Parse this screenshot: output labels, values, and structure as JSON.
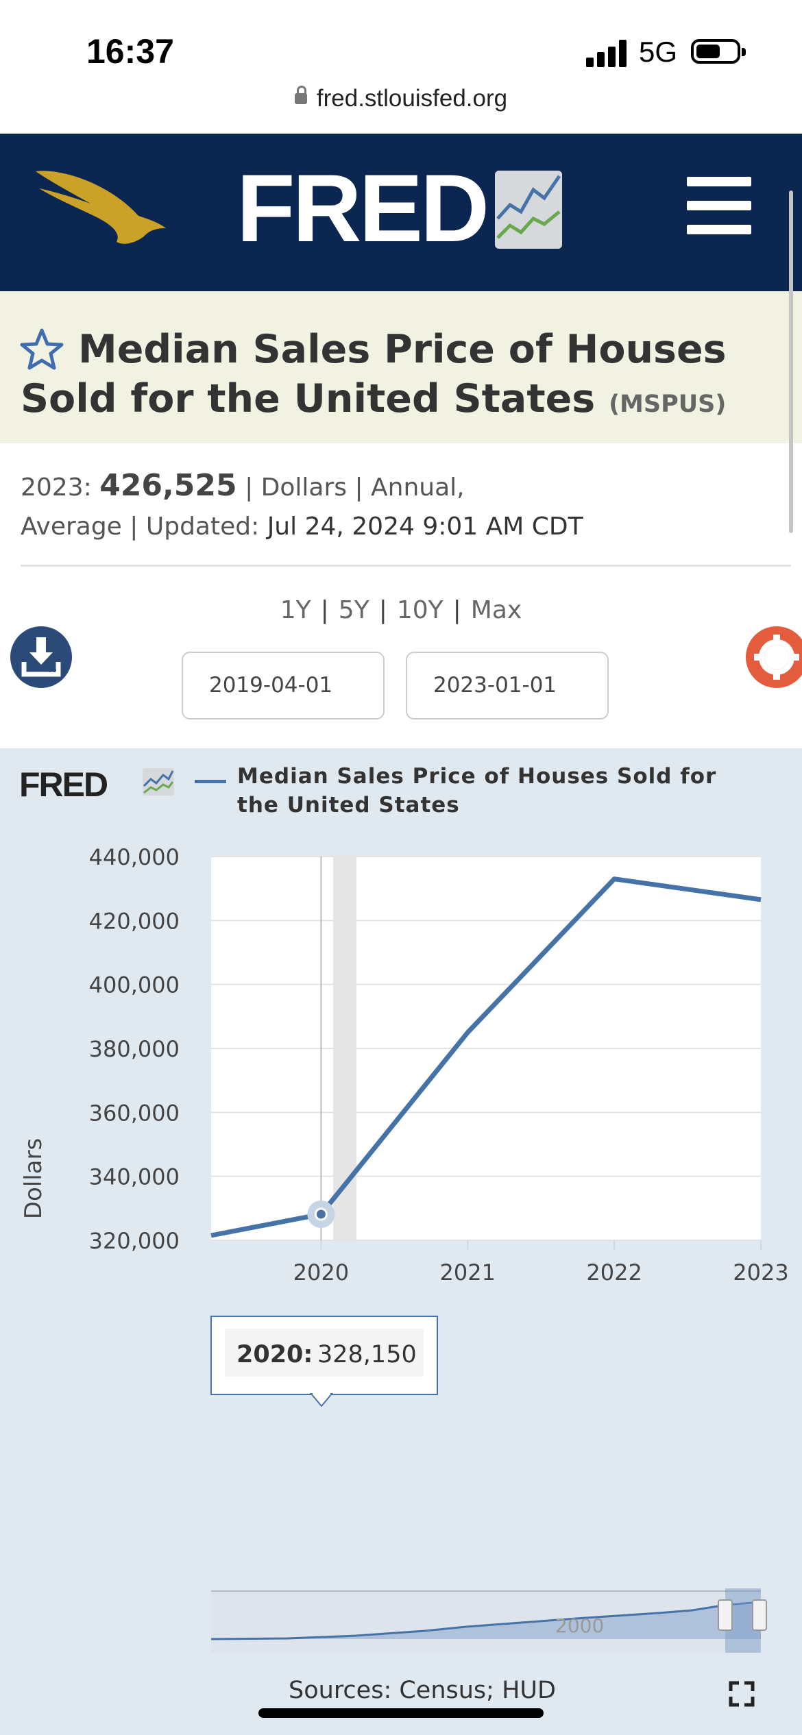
{
  "status_bar": {
    "time": "16:37",
    "network": "5G"
  },
  "browser": {
    "url": "fred.stlouisfed.org"
  },
  "header": {
    "logo_text": "FRED"
  },
  "series": {
    "title": "Median Sales Price of Houses Sold for the United States",
    "code": "(MSPUS)"
  },
  "meta": {
    "year_label": "2023:",
    "value": "426,525",
    "units": "| Dollars | Annual,",
    "frequency": "Average",
    "updated_label": "| Updated:",
    "updated_value": "Jul 24, 2024 9:01 AM CDT"
  },
  "ranges": [
    "1Y",
    "5Y",
    "10Y",
    "Max"
  ],
  "dates": {
    "start": "2019-04-01",
    "end": "2023-01-01"
  },
  "chart_panel": {
    "logo_text": "FRED",
    "legend": "Median Sales Price of Houses Sold for the United States",
    "ylabel": "Dollars",
    "sources": "Sources: Census; HUD",
    "tooltip": {
      "label": "2020:",
      "value": "328,150"
    },
    "navigator_label": "2000"
  },
  "colors": {
    "header": "#0b2650",
    "series": "#4572a7",
    "accent": "#e25c3d",
    "title_bg": "#f1f2e2",
    "chart_bg": "#e1e9f0"
  },
  "chart_data": {
    "type": "line",
    "title": "",
    "xlabel": "",
    "ylabel": "Dollars",
    "x": [
      2019.25,
      2020,
      2021,
      2022,
      2023
    ],
    "series": [
      {
        "name": "Median Sales Price of Houses Sold for the United States",
        "values": [
          321500,
          328150,
          385000,
          433000,
          426525
        ]
      }
    ],
    "xticks": [
      2020,
      2021,
      2022,
      2023
    ],
    "xtick_labels": [
      "2020",
      "2021",
      "2022",
      "2023"
    ],
    "yticks": [
      320000,
      340000,
      360000,
      380000,
      400000,
      420000,
      440000
    ],
    "ytick_labels": [
      "320,000",
      "340,000",
      "360,000",
      "380,000",
      "400,000",
      "420,000",
      "440,000"
    ],
    "xlim": [
      2019.25,
      2023
    ],
    "ylim": [
      320000,
      440000
    ],
    "grid": true,
    "highlight_x": 2020
  }
}
